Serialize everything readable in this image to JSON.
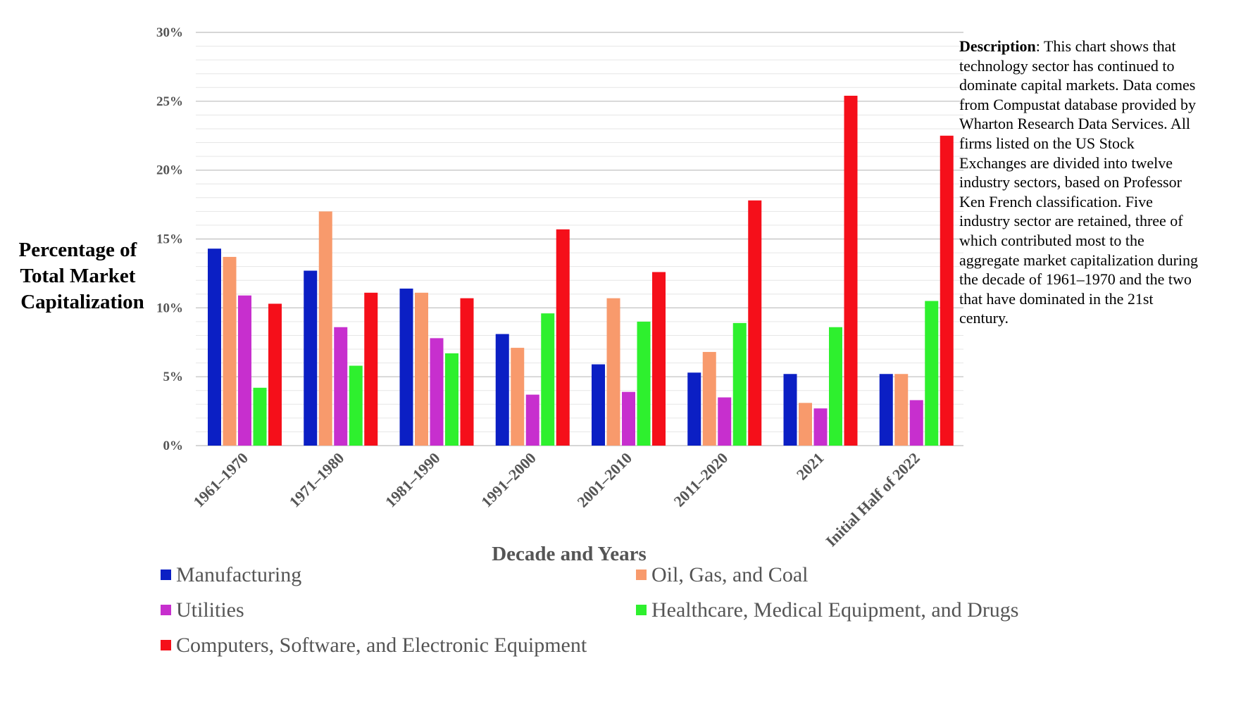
{
  "description": {
    "heading": "Description",
    "body": ": This chart shows that technology sector has continued to dominate capital markets. Data comes from Compustat database provided by Wharton Research Data Services. All firms listed on the US Stock Exchanges are divided into twelve industry sectors, based on Professor Ken French classification. Five industry sector are retained, three of which contributed most to the aggregate market capitalization during the decade of 1961–1970 and the two that have dominated in the 21st century."
  },
  "chart_data": {
    "type": "bar",
    "title": "",
    "xlabel": "Decade and Years",
    "ylabel_lines": [
      "Percentage of",
      "Total Market",
      "Capitalization"
    ],
    "ylim": [
      0,
      30
    ],
    "yticks": [
      0,
      5,
      10,
      15,
      20,
      25,
      30
    ],
    "ytick_labels": [
      "0%",
      "5%",
      "10%",
      "15%",
      "20%",
      "25%",
      "30%"
    ],
    "grid": true,
    "legend_position": "bottom",
    "categories": [
      "1961–1970",
      "1971–1980",
      "1981–1990",
      "1991–2000",
      "2001–2010",
      "2011–2020",
      "2021",
      "Initial Half of 2022"
    ],
    "series": [
      {
        "name": "Manufacturing",
        "color": "#0b1fc4",
        "values": [
          14.3,
          12.7,
          11.4,
          8.1,
          5.9,
          5.3,
          5.2,
          5.2
        ]
      },
      {
        "name": "Oil, Gas, and Coal",
        "color": "#f89a6c",
        "values": [
          13.7,
          17.0,
          11.1,
          7.1,
          10.7,
          6.8,
          3.1,
          5.2
        ]
      },
      {
        "name": "Utilities",
        "color": "#c72fce",
        "values": [
          10.9,
          8.6,
          7.8,
          3.7,
          3.9,
          3.5,
          2.7,
          3.3
        ]
      },
      {
        "name": "Healthcare, Medical Equipment, and Drugs",
        "color": "#2ef02e",
        "values": [
          4.2,
          5.8,
          6.7,
          9.6,
          9.0,
          8.9,
          8.6,
          10.5
        ]
      },
      {
        "name": "Computers, Software, and Electronic Equipment",
        "color": "#f50f1a",
        "values": [
          10.3,
          11.1,
          10.7,
          15.7,
          12.6,
          17.8,
          25.4,
          22.5
        ]
      }
    ]
  }
}
